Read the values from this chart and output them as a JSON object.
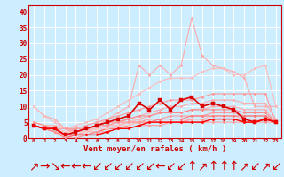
{
  "xlabel": "Vent moyen/en rafales ( km/h )",
  "background_color": "#cceeff",
  "grid_color": "#ffffff",
  "x": [
    0,
    1,
    2,
    3,
    4,
    5,
    6,
    7,
    8,
    9,
    10,
    11,
    12,
    13,
    14,
    15,
    16,
    17,
    18,
    19,
    20,
    21,
    22,
    23
  ],
  "ylim": [
    0,
    42
  ],
  "yticks": [
    0,
    5,
    10,
    15,
    20,
    25,
    30,
    35,
    40
  ],
  "series": [
    {
      "color": "#ffaaaa",
      "lw": 0.8,
      "marker": "D",
      "markersize": 1.5,
      "values": [
        10,
        7,
        6,
        3,
        2,
        2,
        4,
        6,
        8,
        10,
        23,
        20,
        23,
        20,
        23,
        38,
        26,
        23,
        22,
        21,
        19,
        10,
        10,
        10
      ]
    },
    {
      "color": "#ffbbbb",
      "lw": 0.8,
      "marker": "D",
      "markersize": 1.5,
      "values": [
        10,
        7,
        5,
        3,
        4,
        5,
        6,
        8,
        10,
        12,
        14,
        16,
        18,
        19,
        19,
        19,
        21,
        22,
        22,
        20,
        20,
        22,
        23,
        10
      ]
    },
    {
      "color": "#ff9999",
      "lw": 0.8,
      "marker": "D",
      "markersize": 1.5,
      "values": [
        4,
        3,
        3,
        2,
        3,
        4,
        5,
        6,
        7,
        8,
        9,
        10,
        11,
        12,
        12,
        12,
        13,
        14,
        14,
        14,
        14,
        14,
        14,
        5
      ]
    },
    {
      "color": "#ffaaaa",
      "lw": 0.8,
      "marker": "D",
      "markersize": 1.5,
      "values": [
        4,
        3,
        2,
        1,
        1,
        2,
        3,
        4,
        5,
        6,
        7,
        8,
        9,
        10,
        10,
        11,
        11,
        12,
        12,
        12,
        11,
        11,
        11,
        6
      ]
    },
    {
      "color": "#ffaaaa",
      "lw": 0.8,
      "marker": "D",
      "markersize": 1.5,
      "values": [
        4,
        3,
        2,
        1,
        1,
        2,
        2,
        3,
        4,
        5,
        6,
        7,
        8,
        8,
        8,
        9,
        9,
        10,
        10,
        10,
        9,
        9,
        9,
        5
      ]
    },
    {
      "color": "#ff8888",
      "lw": 0.8,
      "marker": "D",
      "markersize": 1.5,
      "values": [
        5,
        4,
        3,
        2,
        2,
        3,
        4,
        5,
        5,
        6,
        7,
        7,
        8,
        8,
        8,
        9,
        9,
        9,
        9,
        9,
        8,
        8,
        8,
        5
      ]
    },
    {
      "color": "#ff9999",
      "lw": 0.8,
      "marker": "D",
      "markersize": 1.5,
      "values": [
        4,
        3,
        2,
        0,
        1,
        1,
        2,
        3,
        4,
        5,
        5,
        6,
        6,
        7,
        7,
        7,
        7,
        8,
        8,
        8,
        7,
        7,
        7,
        5
      ]
    },
    {
      "color": "#ffbbbb",
      "lw": 0.8,
      "marker": "D",
      "markersize": 1.5,
      "values": [
        4,
        3,
        3,
        2,
        2,
        3,
        3,
        4,
        5,
        5,
        6,
        6,
        6,
        6,
        6,
        6,
        6,
        7,
        7,
        7,
        6,
        6,
        6,
        5
      ]
    },
    {
      "color": "#ff7777",
      "lw": 0.8,
      "marker": "D",
      "markersize": 1.5,
      "values": [
        4,
        3,
        2,
        0,
        1,
        1,
        2,
        3,
        3,
        4,
        5,
        5,
        6,
        6,
        6,
        7,
        7,
        7,
        7,
        7,
        7,
        7,
        7,
        5
      ]
    },
    {
      "color": "#ffcccc",
      "lw": 0.8,
      "marker": "D",
      "markersize": 1.5,
      "values": [
        5,
        4,
        3,
        2,
        2,
        2,
        3,
        3,
        4,
        4,
        5,
        5,
        5,
        5,
        5,
        6,
        6,
        6,
        6,
        6,
        6,
        6,
        6,
        5
      ]
    },
    {
      "color": "#ffbbbb",
      "lw": 0.8,
      "marker": "D",
      "markersize": 1.5,
      "values": [
        5,
        4,
        4,
        3,
        3,
        3,
        4,
        4,
        4,
        5,
        5,
        5,
        5,
        5,
        5,
        6,
        6,
        6,
        6,
        6,
        6,
        6,
        6,
        5
      ]
    },
    {
      "color": "#ff9999",
      "lw": 0.8,
      "marker": "D",
      "markersize": 1.5,
      "values": [
        5,
        4,
        3,
        3,
        3,
        3,
        4,
        4,
        5,
        5,
        5,
        5,
        5,
        5,
        5,
        6,
        6,
        6,
        6,
        6,
        6,
        6,
        6,
        5
      ]
    },
    {
      "color": "#ff9999",
      "lw": 0.8,
      "marker": "D",
      "markersize": 1.5,
      "values": [
        4,
        3,
        2,
        0,
        0,
        1,
        2,
        2,
        3,
        3,
        4,
        4,
        4,
        5,
        5,
        5,
        5,
        5,
        5,
        5,
        5,
        5,
        5,
        5
      ]
    },
    {
      "color": "#dd0000",
      "lw": 1.2,
      "marker": "s",
      "markersize": 2.5,
      "values": [
        4,
        3,
        3,
        1,
        2,
        3,
        4,
        5,
        6,
        7,
        11,
        9,
        12,
        9,
        12,
        13,
        10,
        11,
        10,
        9,
        6,
        5,
        6,
        5
      ]
    },
    {
      "color": "#ff0000",
      "lw": 1.0,
      "marker": "D",
      "markersize": 1.5,
      "values": [
        4,
        3,
        3,
        1,
        1,
        1,
        1,
        2,
        3,
        3,
        4,
        5,
        5,
        5,
        5,
        5,
        5,
        6,
        6,
        6,
        5,
        5,
        6,
        5
      ]
    }
  ],
  "wind_dirs": [
    "↗",
    "→",
    "↘",
    "←",
    "←",
    "←",
    "↙",
    "↙",
    "↙",
    "↙",
    "↙",
    "↙",
    "←",
    "↙",
    "↙",
    "↑",
    "↗",
    "↑",
    "↑",
    "↑",
    "↗",
    "↙",
    "↗",
    "↙"
  ]
}
